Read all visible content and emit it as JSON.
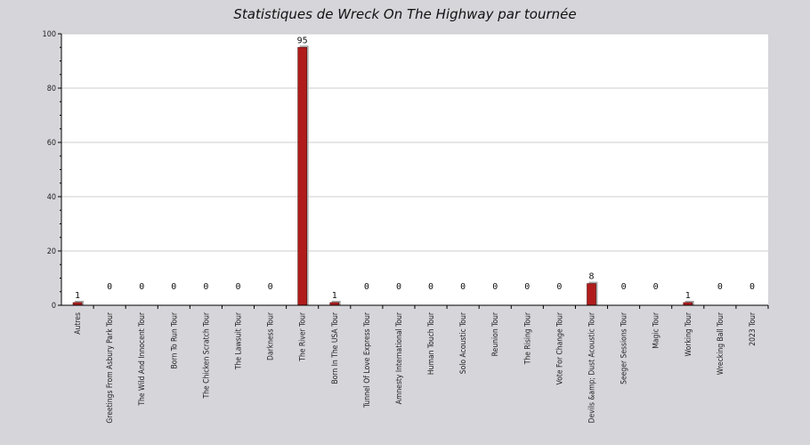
{
  "chart_data": {
    "type": "bar",
    "title": "Statistiques de Wreck On The Highway par tournée",
    "xlabel": "",
    "ylabel": "",
    "ylim": [
      0,
      100
    ],
    "yticks": [
      0,
      20,
      40,
      60,
      80,
      100
    ],
    "grid": true,
    "categories": [
      "Autres",
      "Greetings From Asbury Park Tour",
      "The Wild And Innocent Tour",
      "Born To Run Tour",
      "The Chicken Scratch Tour",
      "The Lawsuit Tour",
      "Darkness Tour",
      "The River Tour",
      "Born In The USA Tour",
      "Tunnel Of Love Express Tour",
      "Amnesty International Tour",
      "Human Touch Tour",
      "Solo Acoustic Tour",
      "Reunion Tour",
      "The Rising Tour",
      "Vote For Change Tour",
      "Devils &amp; Dust Acoustic Tour",
      "Seeger Sessions Tour",
      "Magic Tour",
      "Working Tour",
      "Wrecking Ball Tour",
      "2023 Tour"
    ],
    "values": [
      1,
      0,
      0,
      0,
      0,
      0,
      0,
      95,
      1,
      0,
      0,
      0,
      0,
      0,
      0,
      0,
      8,
      0,
      0,
      1,
      0,
      0
    ],
    "colors": {
      "background": "#d6d5da",
      "plot_background": "#ffffff",
      "bar": "#b01c1c",
      "bar_shadow": "#a9a9a9",
      "grid": "#cccccc",
      "axis": "#000000"
    }
  }
}
